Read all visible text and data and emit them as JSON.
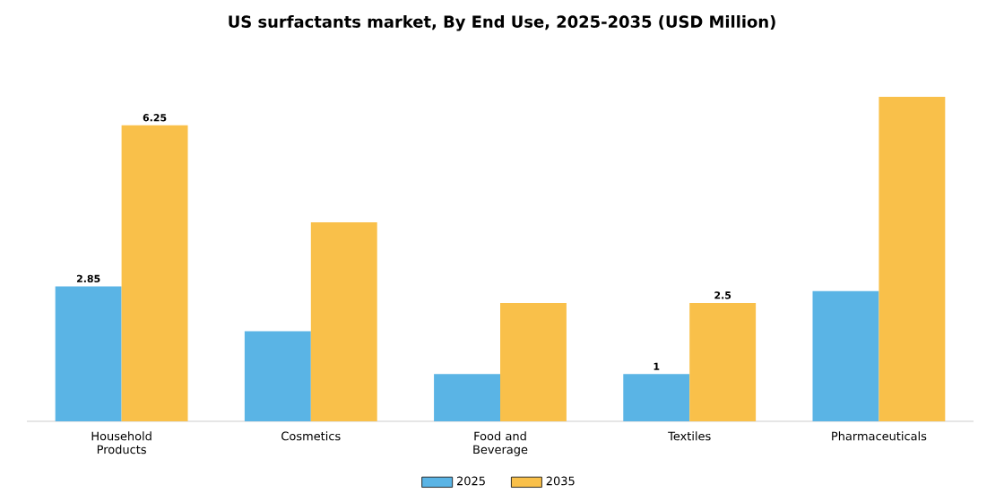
{
  "chart_data": {
    "type": "bar",
    "title": "US surfactants market, By End Use, 2025-2035 (USD Million)",
    "categories": [
      "Household Products",
      "Cosmetics",
      "Food and Beverage",
      "Textiles",
      "Pharmaceuticals"
    ],
    "series": [
      {
        "name": "2025",
        "color": "#5ab4e5",
        "values": [
          2.85,
          1.9,
          1.0,
          1,
          2.75
        ],
        "value_labels": [
          "2.85",
          null,
          null,
          "1",
          null
        ]
      },
      {
        "name": "2035",
        "color": "#f9c04a",
        "values": [
          6.25,
          4.2,
          2.5,
          2.5,
          6.85
        ],
        "value_labels": [
          "6.25",
          null,
          null,
          "2.5",
          null
        ]
      }
    ],
    "legend": "bottom"
  }
}
